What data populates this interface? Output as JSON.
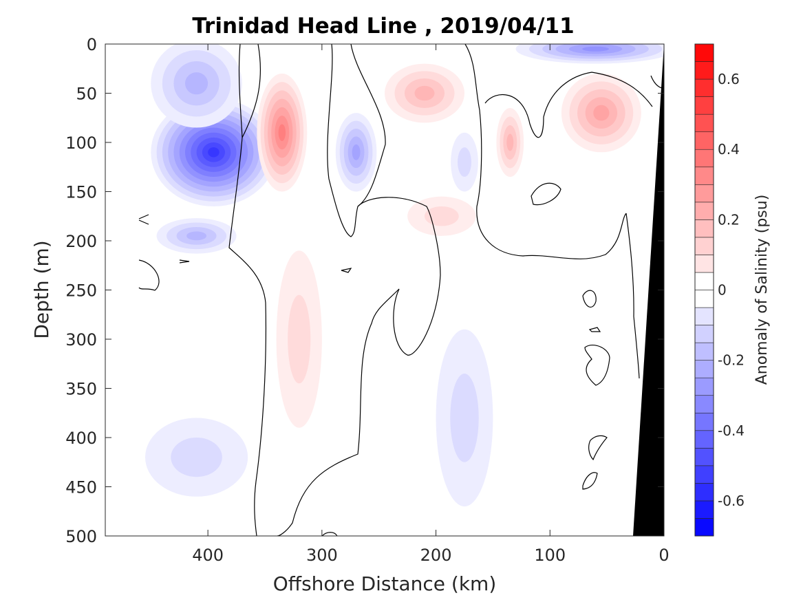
{
  "chart_data": {
    "type": "heatmap",
    "title": "Trinidad Head Line , 2019/04/11",
    "xlabel": "Offshore Distance (km)",
    "ylabel": "Depth (m)",
    "xlim": [
      490,
      0
    ],
    "ylim": [
      0,
      500
    ],
    "x_reversed": true,
    "y_reversed": true,
    "x_ticks": [
      400,
      300,
      200,
      100,
      0
    ],
    "y_ticks": [
      0,
      50,
      100,
      150,
      200,
      250,
      300,
      350,
      400,
      450,
      500
    ],
    "colorbar": {
      "label": "Anomaly of Salinity (psu)",
      "range": [
        -0.7,
        0.7
      ],
      "level_step": 0.05,
      "ticks": [
        -0.6,
        -0.4,
        -0.2,
        0,
        0.2,
        0.4,
        0.6
      ],
      "colormap": "blue-white-red",
      "neg_color": "#0000ff",
      "zero_color": "#ffffff",
      "pos_color": "#ff0000"
    },
    "grid": false,
    "bathymetry_color": "#000000",
    "features": [
      {
        "kind": "negative",
        "x": 395,
        "depth": 110,
        "peak_anomaly": -0.55
      },
      {
        "kind": "negative",
        "x": 410,
        "depth": 40,
        "peak_anomaly": -0.2
      },
      {
        "kind": "negative",
        "x": 410,
        "depth": 195,
        "peak_anomaly": -0.2
      },
      {
        "kind": "positive",
        "x": 335,
        "depth": 90,
        "peak_anomaly": 0.35
      },
      {
        "kind": "positive",
        "x": 320,
        "depth": 300,
        "peak_anomaly": 0.1
      },
      {
        "kind": "negative",
        "x": 270,
        "depth": 110,
        "peak_anomaly": -0.25
      },
      {
        "kind": "positive",
        "x": 210,
        "depth": 50,
        "peak_anomaly": 0.2
      },
      {
        "kind": "positive",
        "x": 195,
        "depth": 175,
        "peak_anomaly": 0.08
      },
      {
        "kind": "negative",
        "x": 175,
        "depth": 120,
        "peak_anomaly": -0.12
      },
      {
        "kind": "positive",
        "x": 135,
        "depth": 100,
        "peak_anomaly": 0.2
      },
      {
        "kind": "positive",
        "x": 55,
        "depth": 70,
        "peak_anomaly": 0.25
      },
      {
        "kind": "negative",
        "x": 60,
        "depth": 5,
        "peak_anomaly": -0.3
      },
      {
        "kind": "negative",
        "x": 175,
        "depth": 380,
        "peak_anomaly": -0.08
      },
      {
        "kind": "negative",
        "x": 410,
        "depth": 420,
        "peak_anomaly": -0.08
      }
    ]
  }
}
